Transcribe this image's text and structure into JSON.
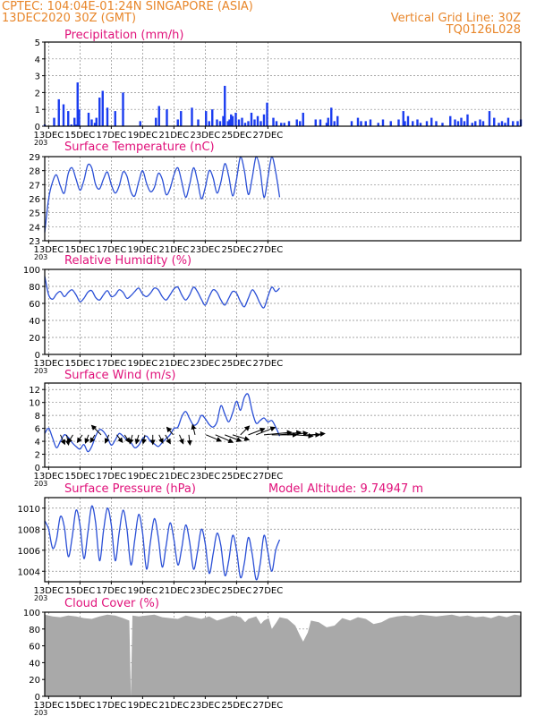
{
  "header": {
    "left_line1": "CPTEC:   104:04E-01:24N   SINGAPORE (ASIA)",
    "left_line2": "13DEC2020 30Z (GMT)",
    "right_line1": "Vertical Grid Line: 30Z",
    "right_line2": "TQ0126L028"
  },
  "colors": {
    "header": "#e8862a",
    "title": "#e0117a",
    "line": "#2a4fd6",
    "bar": "#1a3cf0",
    "cloud": "#a9a9a9",
    "grid": "#888888"
  },
  "x_axis": {
    "tick_labels": [
      "13DEC",
      "15DEC",
      "17DEC",
      "19DEC",
      "21DEC",
      "23DEC",
      "25DEC",
      "27DEC"
    ],
    "overflow_label": "203"
  },
  "chart_data": [
    {
      "id": "precip",
      "type": "bar",
      "title": "Precipitation (mm/h)",
      "ylim": [
        0,
        5
      ],
      "yticks": [
        0,
        1,
        2,
        3,
        4,
        5
      ],
      "x_days": [
        0.0,
        0.6,
        0.9,
        1.2,
        1.5,
        1.7,
        1.9,
        2.0,
        2.1,
        2.2,
        2.8,
        3.0,
        3.2,
        3.3,
        3.5,
        3.7,
        4.0,
        4.5,
        5.0,
        6.1,
        7.1,
        7.3,
        7.8,
        8.5,
        8.7,
        9.4,
        9.8,
        10.3,
        10.5,
        10.7,
        11.0,
        11.2,
        11.4,
        11.5,
        11.7,
        11.8,
        11.9,
        12.0,
        12.2,
        12.4,
        12.6,
        12.8,
        13.0,
        13.2,
        13.4,
        13.6,
        13.8,
        14.0,
        14.2,
        14.6,
        14.8,
        15.1,
        15.3,
        15.6,
        16.1,
        16.3,
        16.5,
        17.3,
        17.6,
        18.0,
        18.1,
        18.3,
        18.5,
        18.7,
        19.6,
        20.0,
        20.2,
        20.5,
        20.8,
        21.3,
        21.6,
        22.1,
        22.6,
        22.9,
        23.0,
        23.2,
        23.5,
        23.8,
        24.0,
        24.4,
        24.7,
        25.0,
        25.4,
        25.9,
        26.2,
        26.4,
        26.6,
        26.8,
        27.0,
        27.3,
        27.5,
        27.8,
        28.0,
        28.4,
        28.7,
        29.0,
        29.2,
        29.4,
        29.6,
        29.9,
        30.2,
        30.4
      ],
      "values": [
        0.1,
        0.5,
        1.6,
        1.3,
        0.9,
        0.1,
        0.5,
        0.1,
        2.6,
        1.0,
        0.8,
        0.4,
        0.2,
        0.5,
        1.7,
        2.1,
        1.1,
        0.9,
        2.0,
        0.3,
        0.5,
        1.2,
        1.0,
        0.4,
        0.9,
        1.1,
        0.4,
        0.9,
        0.3,
        1.0,
        0.4,
        0.3,
        0.6,
        2.4,
        0.3,
        0.4,
        0.7,
        0.6,
        0.8,
        0.4,
        0.5,
        0.2,
        0.3,
        0.8,
        0.4,
        0.6,
        0.3,
        0.7,
        1.4,
        0.5,
        0.3,
        0.2,
        0.2,
        0.3,
        0.4,
        0.3,
        0.8,
        0.4,
        0.4,
        0.2,
        0.5,
        1.1,
        0.3,
        0.6,
        0.3,
        0.5,
        0.3,
        0.3,
        0.4,
        0.2,
        0.4,
        0.3,
        0.4,
        0.9,
        0.3,
        0.6,
        0.3,
        0.4,
        0.2,
        0.3,
        0.5,
        0.3,
        0.2,
        0.6,
        0.4,
        0.3,
        0.5,
        0.3,
        0.7,
        0.2,
        0.3,
        0.4,
        0.3,
        0.9,
        0.5,
        0.2,
        0.3,
        0.2,
        0.5,
        0.3,
        0.3,
        0.4
      ]
    },
    {
      "id": "temp",
      "type": "line",
      "title": "Surface Temperature (nC)",
      "ylim": [
        23,
        29
      ],
      "yticks": [
        23,
        24,
        25,
        26,
        27,
        28,
        29
      ],
      "x_days": [
        0.0,
        0.25,
        0.5,
        0.75,
        1.0,
        1.25,
        1.5,
        1.75,
        2.0,
        2.25,
        2.5,
        2.75,
        3.0,
        3.25,
        3.5,
        3.75,
        4.0,
        4.25,
        4.5,
        4.75,
        5.0,
        5.25,
        5.5,
        5.75,
        6.0,
        6.25,
        6.5,
        6.75,
        7.0,
        7.25,
        7.5,
        7.75,
        8.0,
        8.25,
        8.5,
        8.75,
        9.0,
        9.25,
        9.5,
        9.75,
        10.0,
        10.25,
        10.5,
        10.75,
        11.0,
        11.25,
        11.5,
        11.75,
        12.0,
        12.25,
        12.5,
        12.75,
        13.0,
        13.25,
        13.5,
        13.75,
        14.0,
        14.25,
        14.5,
        14.75,
        15.0
      ],
      "values": [
        23.6,
        26.0,
        27.2,
        27.7,
        26.9,
        26.4,
        27.8,
        28.2,
        27.4,
        26.6,
        27.3,
        28.4,
        28.2,
        27.0,
        26.7,
        27.4,
        27.9,
        27.0,
        26.4,
        26.9,
        27.9,
        27.6,
        26.5,
        26.2,
        27.2,
        28.0,
        27.1,
        26.5,
        26.8,
        27.8,
        27.4,
        26.3,
        26.7,
        27.7,
        28.2,
        27.2,
        26.1,
        27.0,
        28.2,
        27.3,
        26.0,
        26.8,
        28.0,
        27.5,
        26.4,
        27.2,
        28.5,
        27.6,
        26.2,
        27.4,
        29.0,
        28.0,
        26.3,
        27.5,
        29.0,
        28.1,
        26.1,
        27.5,
        29.0,
        27.9,
        26.1
      ]
    },
    {
      "id": "rh",
      "type": "line",
      "title": "Relative Humidity (%)",
      "ylim": [
        0,
        100
      ],
      "yticks": [
        0,
        20,
        40,
        60,
        80,
        100
      ],
      "x_days": [
        0.0,
        0.25,
        0.5,
        0.75,
        1.0,
        1.25,
        1.5,
        1.75,
        2.0,
        2.25,
        2.5,
        2.75,
        3.0,
        3.25,
        3.5,
        3.75,
        4.0,
        4.25,
        4.5,
        4.75,
        5.0,
        5.25,
        5.5,
        5.75,
        6.0,
        6.25,
        6.5,
        6.75,
        7.0,
        7.25,
        7.5,
        7.75,
        8.0,
        8.25,
        8.5,
        8.75,
        9.0,
        9.25,
        9.5,
        9.75,
        10.0,
        10.25,
        10.5,
        10.75,
        11.0,
        11.25,
        11.5,
        11.75,
        12.0,
        12.25,
        12.5,
        12.75,
        13.0,
        13.25,
        13.5,
        13.75,
        14.0,
        14.25,
        14.5,
        14.75,
        15.0
      ],
      "values": [
        92,
        70,
        65,
        71,
        74,
        68,
        73,
        76,
        70,
        62,
        66,
        73,
        75,
        67,
        64,
        70,
        75,
        68,
        70,
        76,
        73,
        66,
        69,
        74,
        78,
        71,
        68,
        72,
        78,
        76,
        68,
        64,
        70,
        77,
        79,
        70,
        64,
        70,
        79,
        74,
        65,
        58,
        68,
        76,
        73,
        64,
        58,
        66,
        74,
        72,
        62,
        56,
        66,
        76,
        70,
        60,
        55,
        68,
        79,
        74,
        78
      ]
    },
    {
      "id": "wind",
      "type": "line",
      "title": "Surface Wind (m/s)",
      "ylim": [
        0,
        13
      ],
      "yticks": [
        0,
        2,
        4,
        6,
        8,
        10,
        12
      ],
      "x_days": [
        0.0,
        0.25,
        0.5,
        0.75,
        1.0,
        1.25,
        1.5,
        1.75,
        2.0,
        2.25,
        2.5,
        2.75,
        3.0,
        3.25,
        3.5,
        3.75,
        4.0,
        4.25,
        4.5,
        4.75,
        5.0,
        5.25,
        5.5,
        5.75,
        6.0,
        6.25,
        6.5,
        6.75,
        7.0,
        7.25,
        7.5,
        7.75,
        8.0,
        8.25,
        8.5,
        8.75,
        9.0,
        9.25,
        9.5,
        9.75,
        10.0,
        10.25,
        10.5,
        10.75,
        11.0,
        11.25,
        11.5,
        11.75,
        12.0,
        12.25,
        12.5,
        12.75,
        13.0,
        13.25,
        13.5,
        13.75,
        14.0,
        14.25,
        14.5,
        14.75,
        15.0
      ],
      "values": [
        5.2,
        6.0,
        4.5,
        3.0,
        4.0,
        5.0,
        4.6,
        3.8,
        3.2,
        2.8,
        3.5,
        2.4,
        3.2,
        4.8,
        5.8,
        5.5,
        4.6,
        3.4,
        4.2,
        5.2,
        4.8,
        4.2,
        3.8,
        3.0,
        3.4,
        4.4,
        4.8,
        4.0,
        3.6,
        3.2,
        3.8,
        4.4,
        5.0,
        6.0,
        6.2,
        7.8,
        8.6,
        7.5,
        6.5,
        6.8,
        8.0,
        7.5,
        6.6,
        6.2,
        7.0,
        9.5,
        8.2,
        7.0,
        8.4,
        10.2,
        8.8,
        10.8,
        11.2,
        8.6,
        6.8,
        7.2,
        7.6,
        7.0,
        7.2,
        6.2,
        4.8
      ],
      "arrows": [
        {
          "day": 1.0,
          "u": 0.7,
          "v": 1.5
        },
        {
          "day": 1.4,
          "u": 0.3,
          "v": 1.6
        },
        {
          "day": 1.8,
          "u": -0.8,
          "v": 1.3
        },
        {
          "day": 2.4,
          "u": -0.8,
          "v": 1.2
        },
        {
          "day": 2.8,
          "u": -0.5,
          "v": 1.3
        },
        {
          "day": 3.2,
          "u": -0.7,
          "v": 1.2
        },
        {
          "day": 3.6,
          "u": -1.5,
          "v": -1.5
        },
        {
          "day": 4.1,
          "u": -0.6,
          "v": 1.3
        },
        {
          "day": 4.6,
          "u": 0.9,
          "v": 1.2
        },
        {
          "day": 5.1,
          "u": 0.8,
          "v": 1.2
        },
        {
          "day": 5.6,
          "u": -0.4,
          "v": 1.4
        },
        {
          "day": 6.0,
          "u": -0.4,
          "v": 1.4
        },
        {
          "day": 6.4,
          "u": -0.3,
          "v": 1.4
        },
        {
          "day": 6.9,
          "u": 0.0,
          "v": 1.5
        },
        {
          "day": 7.3,
          "u": 0.6,
          "v": 1.3
        },
        {
          "day": 7.7,
          "u": 0.8,
          "v": 1.4
        },
        {
          "day": 8.2,
          "u": -1.0,
          "v": -1.2
        },
        {
          "day": 8.6,
          "u": 0.6,
          "v": 1.4
        },
        {
          "day": 9.2,
          "u": 0.2,
          "v": 1.6
        },
        {
          "day": 9.6,
          "u": -0.4,
          "v": -1.6
        },
        {
          "day": 10.3,
          "u": 2.4,
          "v": 1.0
        },
        {
          "day": 10.9,
          "u": 2.8,
          "v": 1.2
        },
        {
          "day": 11.5,
          "u": 2.6,
          "v": 1.0
        },
        {
          "day": 12.0,
          "u": 2.6,
          "v": 0.8
        },
        {
          "day": 12.5,
          "u": 1.4,
          "v": -1.4
        },
        {
          "day": 13.0,
          "u": 2.6,
          "v": -1.0
        },
        {
          "day": 13.5,
          "u": 3.0,
          "v": -1.2
        },
        {
          "day": 14.0,
          "u": 4.4,
          "v": -0.4
        },
        {
          "day": 14.5,
          "u": 4.0,
          "v": 0.0
        },
        {
          "day": 15.0,
          "u": 3.4,
          "v": -0.4
        },
        {
          "day": 15.5,
          "u": 3.2,
          "v": -0.3
        },
        {
          "day": 16.0,
          "u": 2.8,
          "v": 0.2
        },
        {
          "day": 16.6,
          "u": 2.4,
          "v": 0.0
        },
        {
          "day": 17.0,
          "u": 2.2,
          "v": -0.2
        }
      ]
    },
    {
      "id": "pres",
      "type": "line",
      "title": "Surface Pressure (hPa)",
      "subtitle": "Model Altitude: 9.74947 m",
      "ylim": [
        1003,
        1011
      ],
      "yticks": [
        1004,
        1006,
        1008,
        1010
      ],
      "x_days": [
        0.0,
        0.25,
        0.5,
        0.75,
        1.0,
        1.25,
        1.5,
        1.75,
        2.0,
        2.25,
        2.5,
        2.75,
        3.0,
        3.25,
        3.5,
        3.75,
        4.0,
        4.25,
        4.5,
        4.75,
        5.0,
        5.25,
        5.5,
        5.75,
        6.0,
        6.25,
        6.5,
        6.75,
        7.0,
        7.25,
        7.5,
        7.75,
        8.0,
        8.25,
        8.5,
        8.75,
        9.0,
        9.25,
        9.5,
        9.75,
        10.0,
        10.25,
        10.5,
        10.75,
        11.0,
        11.25,
        11.5,
        11.75,
        12.0,
        12.25,
        12.5,
        12.75,
        13.0,
        13.25,
        13.5,
        13.75,
        14.0,
        14.25,
        14.5,
        14.75,
        15.0
      ],
      "values": [
        1008.8,
        1008.0,
        1006.2,
        1007.0,
        1009.2,
        1008.2,
        1005.4,
        1007.2,
        1009.8,
        1008.4,
        1005.2,
        1007.6,
        1010.2,
        1008.6,
        1005.0,
        1007.8,
        1010.0,
        1008.4,
        1005.0,
        1007.6,
        1009.8,
        1008.0,
        1004.6,
        1007.0,
        1009.4,
        1007.6,
        1004.2,
        1006.8,
        1009.0,
        1007.2,
        1004.4,
        1006.4,
        1008.6,
        1007.0,
        1004.6,
        1006.2,
        1008.4,
        1006.8,
        1004.2,
        1005.8,
        1008.0,
        1006.6,
        1003.8,
        1005.6,
        1007.6,
        1006.4,
        1003.6,
        1005.0,
        1007.4,
        1006.0,
        1003.4,
        1004.8,
        1007.2,
        1005.6,
        1003.2,
        1004.6,
        1007.4,
        1005.8,
        1004.0,
        1006.0,
        1007.0
      ]
    },
    {
      "id": "cloud",
      "type": "area",
      "title": "Cloud Cover (%)",
      "ylim": [
        0,
        100
      ],
      "yticks": [
        0,
        20,
        40,
        60,
        80,
        100
      ],
      "x_days": [
        0.0,
        0.5,
        1.0,
        1.5,
        2.0,
        2.5,
        3.0,
        3.5,
        4.0,
        4.5,
        5.0,
        5.4,
        5.5,
        5.6,
        6.0,
        6.5,
        7.0,
        7.5,
        8.0,
        8.5,
        9.0,
        9.5,
        10.0,
        10.5,
        11.0,
        11.5,
        12.0,
        12.5,
        12.8,
        13.0,
        13.5,
        13.8,
        14.0,
        14.3,
        14.5,
        14.8,
        15.0,
        15.5,
        16.0,
        16.3,
        16.5,
        16.8,
        17.0,
        17.5,
        18.0,
        18.5,
        19.0,
        19.5,
        20.0,
        20.5,
        21.0,
        21.5,
        22.0,
        22.5,
        23.0,
        23.5,
        24.0,
        24.5,
        25.0,
        25.5,
        26.0,
        26.5,
        27.0,
        27.5,
        28.0,
        28.5,
        29.0,
        29.5,
        30.0,
        30.4
      ],
      "values": [
        97,
        95,
        94,
        96,
        95,
        93,
        92,
        95,
        97,
        96,
        93,
        90,
        0,
        96,
        95,
        96,
        97,
        94,
        93,
        92,
        96,
        94,
        92,
        95,
        90,
        93,
        96,
        94,
        88,
        92,
        95,
        86,
        90,
        93,
        80,
        88,
        94,
        92,
        84,
        72,
        65,
        76,
        90,
        88,
        82,
        84,
        93,
        90,
        94,
        92,
        86,
        88,
        93,
        95,
        96,
        95,
        97,
        96,
        95,
        96,
        97,
        95,
        96,
        94,
        95,
        93,
        96,
        94,
        97,
        96
      ]
    }
  ]
}
